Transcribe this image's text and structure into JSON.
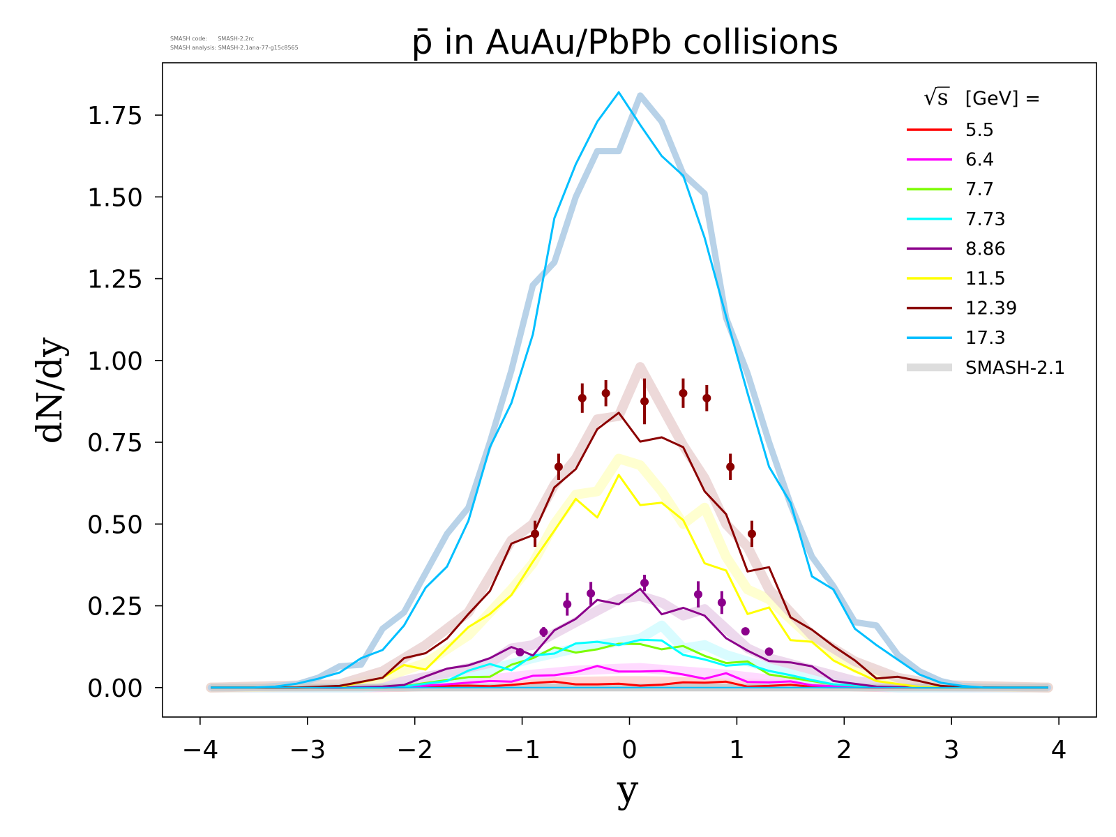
{
  "meta": {
    "code_line": "SMASH code:      SMASH-2.2rc",
    "analysis_line": "SMASH analysis: SMASH-2.1ana-77-g15c8565"
  },
  "chart_data": {
    "type": "line",
    "title": "p̄ in AuAu/PbPb collisions",
    "xlabel": "y",
    "ylabel": "dN/dy",
    "xlim": [
      -4.35,
      4.35
    ],
    "ylim": [
      -0.09,
      1.91
    ],
    "xticks": [
      -4,
      -3,
      -2,
      -1,
      0,
      1,
      2,
      3,
      4
    ],
    "xtick_labels": [
      "−4",
      "−3",
      "−2",
      "−1",
      "0",
      "1",
      "2",
      "3",
      "4"
    ],
    "yticks": [
      0,
      0.25,
      0.5,
      0.75,
      1.0,
      1.25,
      1.5,
      1.75
    ],
    "ytick_labels": [
      "0.00",
      "0.25",
      "0.50",
      "0.75",
      "1.00",
      "1.25",
      "1.50",
      "1.75"
    ],
    "grid": false,
    "legend": {
      "placement": "top-right",
      "title_sqrt": "√s",
      "title_rest": " [GeV] =",
      "entries": [
        {
          "label": "5.5",
          "color": "#ff0000"
        },
        {
          "label": "6.4",
          "color": "#ff00ff"
        },
        {
          "label": "7.7",
          "color": "#7cfc00"
        },
        {
          "label": "7.73",
          "color": "#00ffff"
        },
        {
          "label": "8.86",
          "color": "#8b008b"
        },
        {
          "label": "11.5",
          "color": "#ffff00"
        },
        {
          "label": "12.39",
          "color": "#8b0000"
        },
        {
          "label": "17.3",
          "color": "#00bfff"
        },
        {
          "label": "SMASH-2.1",
          "color": "#dddddd"
        }
      ]
    },
    "series": [
      {
        "name": "5.5",
        "color": "#ff0000",
        "x": [
          -3.9,
          -3.5,
          -3.1,
          -2.7,
          -2.3,
          -2.1,
          -1.9,
          -1.7,
          -1.5,
          -1.3,
          -1.1,
          -0.9,
          -0.7,
          -0.5,
          -0.3,
          -0.1,
          0.1,
          0.3,
          0.5,
          0.7,
          0.9,
          1.1,
          1.3,
          1.5,
          1.7,
          1.9,
          2.3,
          2.7,
          3.1,
          3.5,
          3.9
        ],
        "y": [
          0,
          0,
          0,
          0,
          0,
          0.001,
          0.003,
          0.005,
          0.006,
          0.004,
          0.008,
          0.014,
          0.018,
          0.01,
          0.01,
          0.012,
          0.006,
          0.009,
          0.016,
          0.015,
          0.018,
          0.003,
          0.005,
          0.009,
          0.002,
          0.001,
          0,
          0,
          0,
          0,
          0
        ]
      },
      {
        "name": "6.4",
        "color": "#ff00ff",
        "x": [
          -3.9,
          -3.5,
          -3.1,
          -2.7,
          -2.3,
          -2.1,
          -1.9,
          -1.7,
          -1.5,
          -1.3,
          -1.1,
          -0.9,
          -0.7,
          -0.5,
          -0.3,
          -0.1,
          0.1,
          0.3,
          0.5,
          0.7,
          0.9,
          1.1,
          1.3,
          1.5,
          1.7,
          1.9,
          2.3,
          2.7,
          3.1,
          3.5,
          3.9
        ],
        "y": [
          0,
          0,
          0,
          0,
          0,
          0.002,
          0.006,
          0.01,
          0.015,
          0.02,
          0.018,
          0.036,
          0.038,
          0.047,
          0.066,
          0.049,
          0.049,
          0.051,
          0.04,
          0.027,
          0.044,
          0.017,
          0.016,
          0.019,
          0.007,
          0.004,
          0.001,
          0,
          0,
          0,
          0
        ]
      },
      {
        "name": "7.7",
        "color": "#7cfc00",
        "x": [
          -3.9,
          -3.5,
          -3.1,
          -2.7,
          -2.3,
          -2.1,
          -1.9,
          -1.7,
          -1.5,
          -1.3,
          -1.1,
          -0.9,
          -0.7,
          -0.5,
          -0.3,
          -0.1,
          0.1,
          0.3,
          0.5,
          0.7,
          0.9,
          1.1,
          1.3,
          1.5,
          1.7,
          1.9,
          2.3,
          2.7,
          3.1,
          3.5,
          3.9
        ],
        "y": [
          0,
          0,
          0,
          0,
          0,
          0.004,
          0.014,
          0.023,
          0.032,
          0.033,
          0.07,
          0.09,
          0.123,
          0.107,
          0.117,
          0.134,
          0.133,
          0.117,
          0.127,
          0.097,
          0.075,
          0.08,
          0.04,
          0.03,
          0.02,
          0.01,
          0.002,
          0,
          0,
          0,
          0
        ]
      },
      {
        "name": "7.73",
        "color": "#00ffff",
        "x": [
          -3.9,
          -3.5,
          -3.1,
          -2.7,
          -2.3,
          -2.1,
          -1.9,
          -1.7,
          -1.5,
          -1.3,
          -1.1,
          -0.9,
          -0.7,
          -0.5,
          -0.3,
          -0.1,
          0.1,
          0.3,
          0.5,
          0.7,
          0.9,
          1.1,
          1.3,
          1.5,
          1.7,
          1.9,
          2.3,
          2.7,
          3.1,
          3.5,
          3.9
        ],
        "y": [
          0,
          0,
          0,
          0,
          0,
          0.003,
          0.012,
          0.02,
          0.052,
          0.072,
          0.053,
          0.098,
          0.104,
          0.135,
          0.14,
          0.13,
          0.146,
          0.144,
          0.1,
          0.086,
          0.067,
          0.072,
          0.051,
          0.038,
          0.023,
          0.01,
          0.003,
          0,
          0,
          0,
          0
        ]
      },
      {
        "name": "8.86",
        "color": "#8b008b",
        "x": [
          -3.9,
          -3.5,
          -3.1,
          -2.7,
          -2.3,
          -2.1,
          -1.9,
          -1.7,
          -1.5,
          -1.3,
          -1.1,
          -1.0,
          -0.9,
          -0.7,
          -0.5,
          -0.3,
          -0.1,
          0.1,
          0.3,
          0.5,
          0.7,
          0.9,
          1.1,
          1.3,
          1.5,
          1.7,
          1.9,
          2.3,
          2.7,
          3.1,
          3.5,
          3.9
        ],
        "y": [
          0,
          0,
          0,
          0,
          0.003,
          0.008,
          0.034,
          0.058,
          0.068,
          0.09,
          0.124,
          0.112,
          0.098,
          0.175,
          0.21,
          0.268,
          0.255,
          0.302,
          0.224,
          0.244,
          0.22,
          0.151,
          0.113,
          0.081,
          0.077,
          0.065,
          0.02,
          0.003,
          0.001,
          0,
          0,
          0
        ]
      },
      {
        "name": "11.5",
        "color": "#ffff00",
        "x": [
          -3.9,
          -3.5,
          -3.1,
          -2.7,
          -2.3,
          -2.1,
          -1.9,
          -1.7,
          -1.5,
          -1.3,
          -1.1,
          -0.9,
          -0.7,
          -0.5,
          -0.3,
          -0.1,
          0.1,
          0.3,
          0.5,
          0.7,
          0.9,
          1.1,
          1.3,
          1.5,
          1.7,
          1.9,
          2.1,
          2.3,
          2.7,
          3.1,
          3.5,
          3.9
        ],
        "y": [
          0,
          0,
          0,
          0.002,
          0.03,
          0.069,
          0.055,
          0.12,
          0.185,
          0.225,
          0.283,
          0.385,
          0.48,
          0.577,
          0.52,
          0.65,
          0.558,
          0.565,
          0.512,
          0.38,
          0.358,
          0.225,
          0.245,
          0.145,
          0.14,
          0.083,
          0.05,
          0.02,
          0.002,
          0,
          0,
          0
        ]
      },
      {
        "name": "12.39",
        "color": "#8b0000",
        "x": [
          -3.9,
          -3.5,
          -3.1,
          -2.7,
          -2.3,
          -2.1,
          -1.9,
          -1.7,
          -1.5,
          -1.3,
          -1.1,
          -0.9,
          -0.7,
          -0.5,
          -0.3,
          -0.1,
          0.1,
          0.3,
          0.5,
          0.7,
          0.9,
          1.1,
          1.3,
          1.5,
          1.7,
          1.9,
          2.1,
          2.3,
          2.5,
          2.7,
          2.9,
          3.1,
          3.5,
          3.9
        ],
        "y": [
          0,
          0,
          0,
          0.005,
          0.03,
          0.09,
          0.105,
          0.15,
          0.225,
          0.295,
          0.44,
          0.466,
          0.612,
          0.668,
          0.79,
          0.84,
          0.752,
          0.765,
          0.735,
          0.6,
          0.53,
          0.355,
          0.368,
          0.215,
          0.177,
          0.127,
          0.083,
          0.028,
          0.033,
          0.02,
          0.005,
          0.001,
          0,
          0
        ]
      },
      {
        "name": "17.3",
        "color": "#00bfff",
        "x": [
          -3.9,
          -3.5,
          -3.3,
          -3.1,
          -2.9,
          -2.7,
          -2.5,
          -2.3,
          -2.1,
          -1.9,
          -1.7,
          -1.5,
          -1.3,
          -1.1,
          -0.9,
          -0.7,
          -0.5,
          -0.3,
          -0.1,
          0.1,
          0.3,
          0.5,
          0.7,
          0.9,
          1.1,
          1.3,
          1.5,
          1.7,
          1.9,
          2.1,
          2.3,
          2.5,
          2.7,
          2.9,
          3.1,
          3.3,
          3.5,
          3.9
        ],
        "y": [
          0,
          0,
          0.003,
          0.012,
          0.027,
          0.046,
          0.09,
          0.115,
          0.19,
          0.305,
          0.37,
          0.51,
          0.735,
          0.87,
          1.08,
          1.435,
          1.6,
          1.73,
          1.82,
          1.72,
          1.625,
          1.565,
          1.375,
          1.135,
          0.9,
          0.675,
          0.565,
          0.34,
          0.3,
          0.18,
          0.13,
          0.085,
          0.04,
          0.015,
          0.005,
          0,
          0,
          0
        ]
      }
    ],
    "smash21_bands": [
      {
        "ref": "5.5",
        "color": "#ffcfcf",
        "x": [
          -3.9,
          -2.5,
          -2.1,
          -1.7,
          -1.3,
          -0.9,
          -0.5,
          -0.1,
          0.1,
          0.5,
          0.9,
          1.3,
          1.7,
          2.1,
          2.5,
          3.9
        ],
        "y": [
          0,
          0,
          0.002,
          0.006,
          0.01,
          0.015,
          0.018,
          0.02,
          0.02,
          0.018,
          0.015,
          0.012,
          0.008,
          0.003,
          0,
          0
        ]
      },
      {
        "ref": "6.4",
        "color": "#ffd4ff",
        "x": [
          -3.9,
          -2.5,
          -2.1,
          -1.7,
          -1.3,
          -0.9,
          -0.5,
          -0.1,
          0.1,
          0.5,
          0.9,
          1.3,
          1.7,
          2.1,
          2.5,
          3.9
        ],
        "y": [
          0,
          0,
          0.004,
          0.012,
          0.025,
          0.04,
          0.052,
          0.058,
          0.06,
          0.05,
          0.04,
          0.025,
          0.012,
          0.005,
          0,
          0
        ]
      },
      {
        "ref": "7.73",
        "color": "#d2fbff",
        "x": [
          -3.9,
          -2.5,
          -2.1,
          -1.7,
          -1.3,
          -0.9,
          -0.5,
          -0.1,
          0.1,
          0.3,
          0.5,
          0.7,
          0.9,
          1.3,
          1.7,
          2.1,
          2.5,
          3.9
        ],
        "y": [
          0,
          0,
          0.008,
          0.025,
          0.055,
          0.09,
          0.12,
          0.14,
          0.15,
          0.19,
          0.12,
          0.13,
          0.1,
          0.06,
          0.025,
          0.008,
          0,
          0
        ]
      },
      {
        "ref": "8.86",
        "color": "#ead2ea",
        "x": [
          -3.9,
          -2.5,
          -2.1,
          -1.7,
          -1.3,
          -1.1,
          -0.9,
          -0.7,
          -0.5,
          -0.3,
          -0.1,
          0.1,
          0.3,
          0.5,
          0.7,
          0.9,
          1.1,
          1.3,
          1.7,
          2.1,
          2.5,
          3.9
        ],
        "y": [
          0,
          0.005,
          0.02,
          0.045,
          0.075,
          0.12,
          0.13,
          0.165,
          0.2,
          0.235,
          0.27,
          0.28,
          0.26,
          0.22,
          0.24,
          0.18,
          0.12,
          0.09,
          0.055,
          0.02,
          0.005,
          0
        ]
      },
      {
        "ref": "11.5",
        "color": "#ffffc8",
        "x": [
          -3.9,
          -2.7,
          -2.3,
          -1.9,
          -1.5,
          -1.1,
          -0.9,
          -0.7,
          -0.5,
          -0.3,
          -0.1,
          0.1,
          0.3,
          0.5,
          0.7,
          0.9,
          1.1,
          1.3,
          1.7,
          2.1,
          2.5,
          2.9,
          3.9
        ],
        "y": [
          0,
          0.005,
          0.03,
          0.075,
          0.16,
          0.3,
          0.38,
          0.5,
          0.59,
          0.6,
          0.7,
          0.68,
          0.6,
          0.5,
          0.55,
          0.4,
          0.3,
          0.27,
          0.15,
          0.06,
          0.02,
          0.005,
          0
        ]
      },
      {
        "ref": "12.39",
        "color": "#ead2d2",
        "x": [
          -3.9,
          -2.7,
          -2.3,
          -1.9,
          -1.5,
          -1.1,
          -0.9,
          -0.7,
          -0.5,
          -0.3,
          -0.1,
          0.1,
          0.3,
          0.5,
          0.7,
          0.9,
          1.1,
          1.3,
          1.7,
          2.1,
          2.5,
          2.9,
          3.9
        ],
        "y": [
          0,
          0.01,
          0.05,
          0.13,
          0.23,
          0.45,
          0.5,
          0.62,
          0.7,
          0.82,
          0.83,
          0.98,
          0.86,
          0.74,
          0.64,
          0.5,
          0.43,
          0.3,
          0.16,
          0.08,
          0.03,
          0.008,
          0
        ]
      },
      {
        "ref": "17.3",
        "color": "#b8d2e8",
        "x": [
          -3.9,
          -3.5,
          -3.1,
          -2.9,
          -2.7,
          -2.5,
          -2.3,
          -2.1,
          -1.9,
          -1.7,
          -1.5,
          -1.3,
          -1.1,
          -0.9,
          -0.7,
          -0.5,
          -0.3,
          -0.1,
          0.1,
          0.3,
          0.5,
          0.7,
          0.9,
          1.1,
          1.3,
          1.5,
          1.7,
          1.9,
          2.1,
          2.3,
          2.5,
          2.7,
          2.9,
          3.1,
          3.5,
          3.9
        ],
        "y": [
          0,
          0,
          0.01,
          0.03,
          0.065,
          0.07,
          0.18,
          0.23,
          0.35,
          0.47,
          0.55,
          0.75,
          0.97,
          1.23,
          1.3,
          1.5,
          1.64,
          1.64,
          1.81,
          1.73,
          1.57,
          1.51,
          1.13,
          0.96,
          0.75,
          0.56,
          0.4,
          0.31,
          0.2,
          0.19,
          0.1,
          0.05,
          0.02,
          0.005,
          0,
          0
        ]
      }
    ],
    "measurements": [
      {
        "ref": "12.39",
        "color": "#8b0000",
        "x": [
          -0.88,
          -0.66,
          -0.44,
          -0.22,
          0.14,
          0.5,
          0.72,
          0.94,
          1.14
        ],
        "y": [
          0.47,
          0.675,
          0.885,
          0.9,
          0.875,
          0.9,
          0.885,
          0.675,
          0.47
        ],
        "err": [
          0.04,
          0.04,
          0.045,
          0.04,
          0.07,
          0.045,
          0.04,
          0.04,
          0.04
        ]
      },
      {
        "ref": "8.86",
        "color": "#8b008b",
        "x": [
          -1.02,
          -0.8,
          -0.58,
          -0.36,
          0.14,
          0.64,
          0.86,
          1.08,
          1.3
        ],
        "y": [
          0.108,
          0.17,
          0.255,
          0.288,
          0.32,
          0.285,
          0.26,
          0.172,
          0.11
        ],
        "err": [
          0.01,
          0.015,
          0.035,
          0.035,
          0.025,
          0.04,
          0.035,
          0,
          0
        ]
      }
    ]
  }
}
